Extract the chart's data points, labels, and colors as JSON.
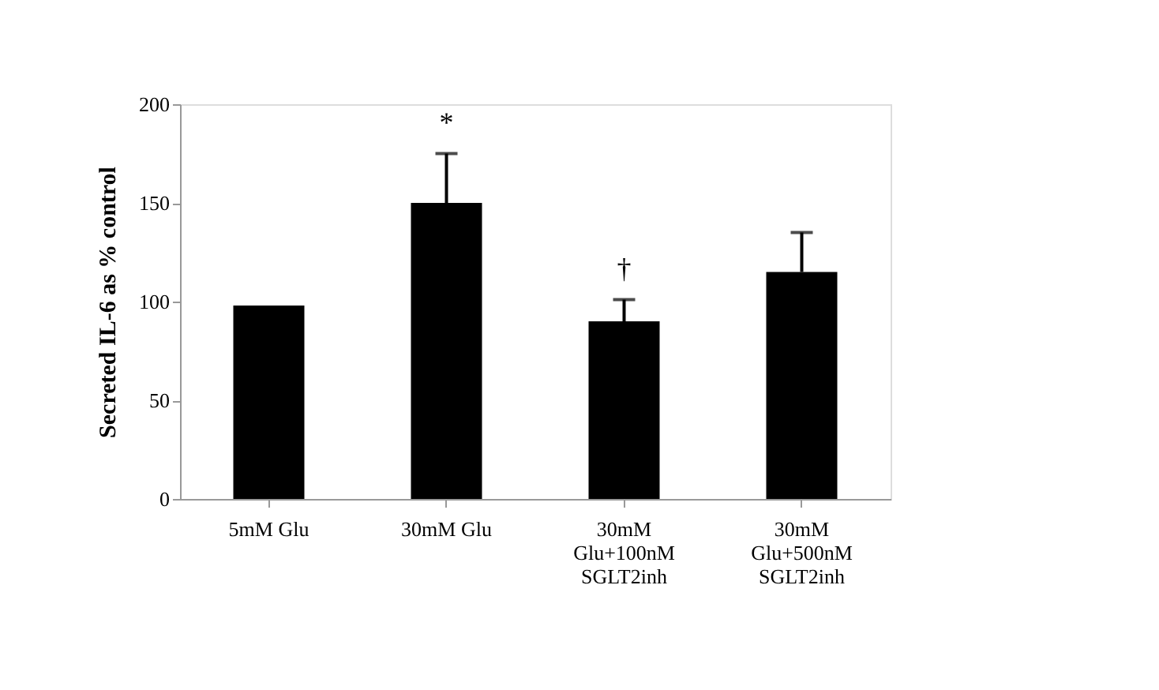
{
  "chart_data": {
    "type": "bar",
    "ylabel": "Secreted IL-6 as % control",
    "categories": [
      "5mM Glu",
      "30mM Glu",
      "30mM\nGlu+100nM\nSGLT2inh",
      "30mM\nGlu+500nM\nSGLT2inh"
    ],
    "values": [
      98,
      150,
      90,
      115
    ],
    "errors": [
      null,
      [
        150,
        175
      ],
      [
        90,
        101
      ],
      [
        115,
        135
      ]
    ],
    "color": "#000000",
    "ylim": [
      0,
      200
    ],
    "yticks": [
      0,
      50,
      100,
      150,
      200
    ],
    "grid": false,
    "annotations": [
      {
        "text": "*",
        "x": "30mM Glu",
        "y": 175
      },
      {
        "text": "†",
        "x": "30mM\nGlu+100nM\nSGLT2inh",
        "y": 101
      }
    ]
  }
}
